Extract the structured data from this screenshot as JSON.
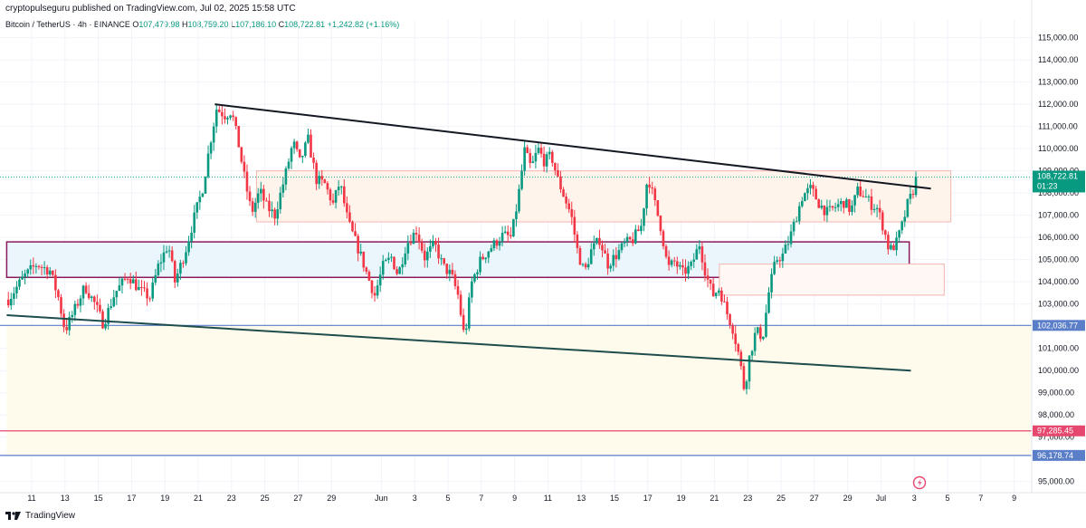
{
  "header": {
    "publisher": "cryptopulseguru published on TradingView.com, Jul 02, 2025 15:58 UTC",
    "symbol": "Bitcoin / TetherUS · 4h · BINANCE",
    "open_label": "O",
    "open": "107,479.98",
    "high_label": "H",
    "high": "108,759.20",
    "low_label": "L",
    "low": "107,186.10",
    "close_label": "C",
    "close": "108,722.81",
    "change": "+1,242.82 (+1.16%)"
  },
  "footer": {
    "brand": "TradingView"
  },
  "chart_data": {
    "type": "candlestick",
    "ylim": [
      94500,
      115800
    ],
    "y_ticks": [
      115000,
      114000,
      113000,
      112000,
      111000,
      110000,
      109000,
      108000,
      107000,
      106000,
      105000,
      104000,
      103000,
      101000,
      100000,
      99000,
      98000,
      97000,
      95000
    ],
    "x_ticks": [
      {
        "label": "11",
        "day": 11
      },
      {
        "label": "13",
        "day": 13
      },
      {
        "label": "15",
        "day": 15
      },
      {
        "label": "17",
        "day": 17
      },
      {
        "label": "19",
        "day": 19
      },
      {
        "label": "21",
        "day": 21
      },
      {
        "label": "23",
        "day": 23
      },
      {
        "label": "25",
        "day": 25
      },
      {
        "label": "27",
        "day": 27
      },
      {
        "label": "29",
        "day": 29
      },
      {
        "label": "Jun",
        "day": 32
      },
      {
        "label": "3",
        "day": 34
      },
      {
        "label": "5",
        "day": 36
      },
      {
        "label": "7",
        "day": 38
      },
      {
        "label": "9",
        "day": 40
      },
      {
        "label": "11",
        "day": 42
      },
      {
        "label": "13",
        "day": 44
      },
      {
        "label": "15",
        "day": 46
      },
      {
        "label": "17",
        "day": 48
      },
      {
        "label": "19",
        "day": 50
      },
      {
        "label": "21",
        "day": 52
      },
      {
        "label": "23",
        "day": 54
      },
      {
        "label": "25",
        "day": 56
      },
      {
        "label": "27",
        "day": 58
      },
      {
        "label": "29",
        "day": 60
      },
      {
        "label": "Jul",
        "day": 62
      },
      {
        "label": "3",
        "day": 64
      },
      {
        "label": "5",
        "day": 66
      },
      {
        "label": "7",
        "day": 68
      },
      {
        "label": "9",
        "day": 70
      }
    ],
    "price_path": [
      [
        9.6,
        103200
      ],
      [
        10.5,
        104200
      ],
      [
        11.3,
        104800
      ],
      [
        12.1,
        104500
      ],
      [
        12.6,
        103300
      ],
      [
        13.0,
        101800
      ],
      [
        13.5,
        102600
      ],
      [
        14.2,
        103800
      ],
      [
        14.8,
        103000
      ],
      [
        15.3,
        102100
      ],
      [
        16.0,
        103500
      ],
      [
        16.8,
        104300
      ],
      [
        17.5,
        103600
      ],
      [
        18.1,
        103300
      ],
      [
        18.6,
        104700
      ],
      [
        19.2,
        105700
      ],
      [
        19.6,
        104000
      ],
      [
        20.2,
        105300
      ],
      [
        20.8,
        107000
      ],
      [
        21.3,
        108300
      ],
      [
        21.7,
        110200
      ],
      [
        22.1,
        111800
      ],
      [
        22.6,
        111500
      ],
      [
        23.0,
        111700
      ],
      [
        23.4,
        110300
      ],
      [
        23.8,
        108600
      ],
      [
        24.2,
        107100
      ],
      [
        24.7,
        108100
      ],
      [
        25.1,
        107400
      ],
      [
        25.6,
        107000
      ],
      [
        26.2,
        108700
      ],
      [
        26.7,
        110300
      ],
      [
        27.1,
        109400
      ],
      [
        27.6,
        110400
      ],
      [
        28.1,
        108600
      ],
      [
        28.6,
        108400
      ],
      [
        29.1,
        107500
      ],
      [
        29.5,
        108500
      ],
      [
        30.0,
        106700
      ],
      [
        30.4,
        105900
      ],
      [
        30.8,
        105100
      ],
      [
        31.2,
        104200
      ],
      [
        31.6,
        103400
      ],
      [
        32.1,
        104700
      ],
      [
        32.6,
        105100
      ],
      [
        33.0,
        104300
      ],
      [
        33.5,
        105700
      ],
      [
        34.1,
        106300
      ],
      [
        34.6,
        105100
      ],
      [
        35.2,
        105700
      ],
      [
        35.7,
        104700
      ],
      [
        36.2,
        104300
      ],
      [
        36.6,
        103400
      ],
      [
        37.0,
        101400
      ],
      [
        37.4,
        103900
      ],
      [
        37.9,
        104900
      ],
      [
        38.4,
        105400
      ],
      [
        38.9,
        105800
      ],
      [
        39.3,
        106100
      ],
      [
        39.8,
        106000
      ],
      [
        40.2,
        107700
      ],
      [
        40.6,
        109900
      ],
      [
        41.0,
        109100
      ],
      [
        41.4,
        110000
      ],
      [
        41.8,
        109400
      ],
      [
        42.2,
        109700
      ],
      [
        42.6,
        108600
      ],
      [
        43.0,
        107800
      ],
      [
        43.4,
        107000
      ],
      [
        43.8,
        105300
      ],
      [
        44.2,
        104400
      ],
      [
        44.6,
        105400
      ],
      [
        45.1,
        105900
      ],
      [
        45.6,
        104800
      ],
      [
        46.1,
        105200
      ],
      [
        46.6,
        105700
      ],
      [
        47.1,
        105900
      ],
      [
        47.6,
        106500
      ],
      [
        48.0,
        108800
      ],
      [
        48.4,
        107600
      ],
      [
        48.8,
        106400
      ],
      [
        49.2,
        104600
      ],
      [
        49.6,
        104900
      ],
      [
        50.1,
        104400
      ],
      [
        50.6,
        104700
      ],
      [
        51.1,
        105700
      ],
      [
        51.5,
        104300
      ],
      [
        51.9,
        103400
      ],
      [
        52.3,
        103700
      ],
      [
        52.7,
        102700
      ],
      [
        53.1,
        101900
      ],
      [
        53.5,
        100600
      ],
      [
        53.8,
        99100
      ],
      [
        54.1,
        100600
      ],
      [
        54.5,
        101800
      ],
      [
        54.9,
        101500
      ],
      [
        55.3,
        103700
      ],
      [
        55.7,
        105000
      ],
      [
        56.1,
        105200
      ],
      [
        56.5,
        105900
      ],
      [
        56.9,
        106900
      ],
      [
        57.3,
        107900
      ],
      [
        57.8,
        108200
      ],
      [
        58.3,
        107500
      ],
      [
        58.8,
        107100
      ],
      [
        59.3,
        107400
      ],
      [
        59.8,
        107600
      ],
      [
        60.2,
        107200
      ],
      [
        60.6,
        108100
      ],
      [
        61.0,
        107900
      ],
      [
        61.4,
        107500
      ],
      [
        61.8,
        107300
      ],
      [
        62.2,
        106300
      ],
      [
        62.5,
        105400
      ],
      [
        62.9,
        105700
      ],
      [
        63.3,
        106600
      ],
      [
        63.6,
        107500
      ],
      [
        63.9,
        108000
      ],
      [
        64.1,
        108723
      ]
    ],
    "zones": [
      {
        "name": "support-band",
        "y_range": [
          104200,
          105800
        ],
        "day_range": [
          9.5,
          63.7
        ],
        "fill": "#eaf6fc",
        "border": "#8b1a5a"
      },
      {
        "name": "resistance-box",
        "y_range": [
          106700,
          109000
        ],
        "day_range": [
          24.5,
          66.2
        ],
        "fill": "#fff4ec",
        "border": "#f4b5b0"
      },
      {
        "name": "demand-box",
        "y_range": [
          103400,
          104800
        ],
        "day_range": [
          52.3,
          65.8
        ],
        "fill": "#fff8f4",
        "border": "#f4b5b0"
      },
      {
        "name": "lower-zone",
        "y_range": [
          96178.74,
          102036.77
        ],
        "day_range": [
          9.5,
          71
        ],
        "fill": "#fffbec",
        "border": "none"
      }
    ],
    "trendlines": [
      {
        "name": "upper-trendline",
        "from": [
          22.0,
          112000
        ],
        "to": [
          65.0,
          108200
        ],
        "color": "#131722"
      },
      {
        "name": "lower-trendline",
        "from": [
          9.5,
          102500
        ],
        "to": [
          63.8,
          100000
        ],
        "color": "#1e4d4d"
      }
    ],
    "levels": [
      {
        "value": 102036.77,
        "label": "102,036.77",
        "color": "#5b7ec9"
      },
      {
        "value": 97285.45,
        "label": "97,285.45",
        "color": "#e5476e"
      },
      {
        "value": 96178.74,
        "label": "96,178.74",
        "color": "#5b7ec9"
      }
    ],
    "current": {
      "price": 108722.81,
      "label": "108,722.81",
      "countdown": "01:23",
      "color": "#089981"
    },
    "up_color": "#089981",
    "down_color": "#f23645",
    "grid": true
  }
}
